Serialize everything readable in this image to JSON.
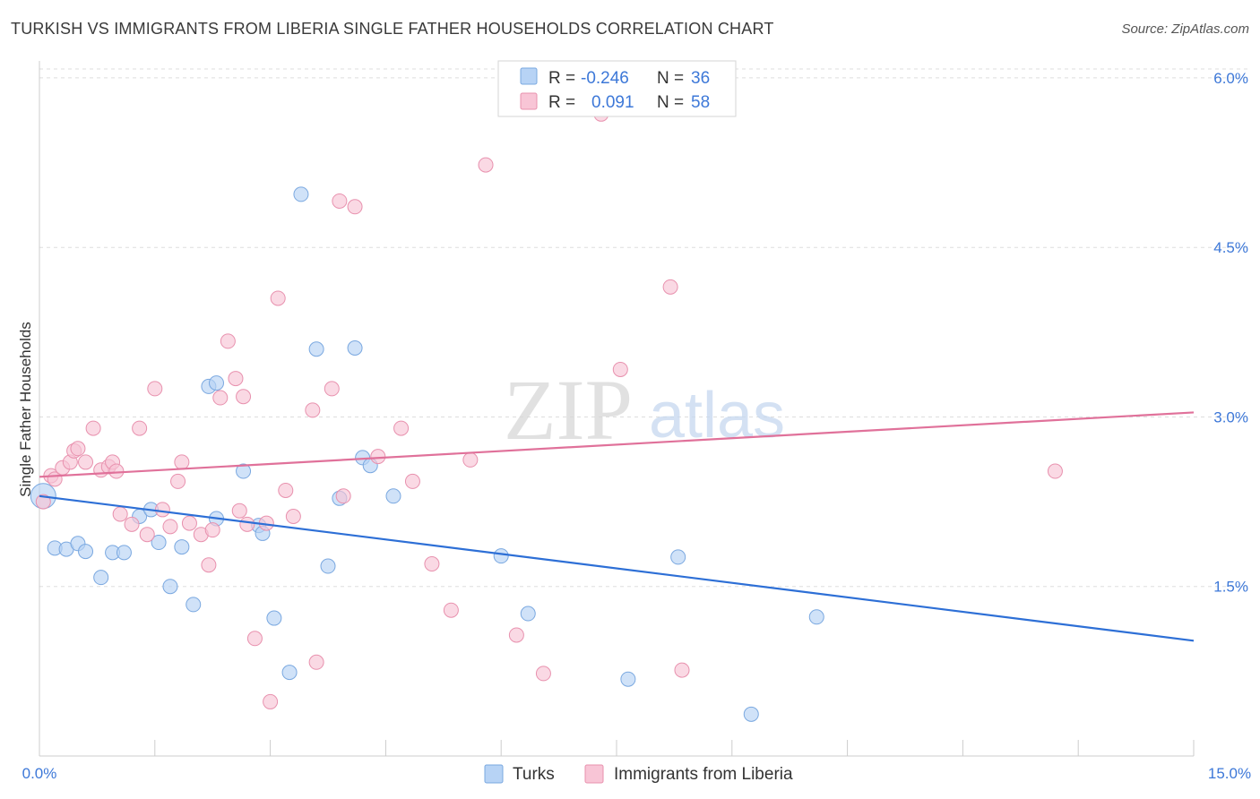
{
  "header": {
    "title": "TURKISH VS IMMIGRANTS FROM LIBERIA SINGLE FATHER HOUSEHOLDS CORRELATION CHART",
    "source": "Source: ZipAtlas.com"
  },
  "watermark": {
    "zip": "ZIP",
    "atlas": "atlas"
  },
  "legend_stats": [
    {
      "r_label": "R =",
      "r_value": "-0.246",
      "n_label": "N =",
      "n_value": "36"
    },
    {
      "r_label": "R =",
      "r_value": "0.091",
      "n_label": "N =",
      "n_value": "58"
    }
  ],
  "colors": {
    "turks_fill": "#b7d3f5",
    "turks_stroke": "#7aa8e0",
    "turks_line": "#2d6fd6",
    "liberia_fill": "#f8c5d6",
    "liberia_stroke": "#e891ae",
    "liberia_line": "#e0719a",
    "value_text": "#3d78d8",
    "grid": "#dddddd"
  },
  "chart_data": {
    "type": "scatter",
    "title": "TURKISH VS IMMIGRANTS FROM LIBERIA SINGLE FATHER HOUSEHOLDS CORRELATION CHART",
    "xlabel": "",
    "ylabel": "Single Father Households",
    "xlim": [
      0,
      15
    ],
    "ylim": [
      0,
      6.15
    ],
    "x_tick_labels": [
      "0.0%",
      "15.0%"
    ],
    "y_ticks": [
      1.5,
      3.0,
      4.5,
      6.0
    ],
    "y_tick_labels": [
      "1.5%",
      "3.0%",
      "4.5%",
      "6.0%"
    ],
    "grid": "horizontal dashed",
    "legend_position": "bottom-center",
    "series": [
      {
        "name": "Turks",
        "trend": [
          [
            0,
            2.3
          ],
          [
            15,
            1.02
          ]
        ],
        "points": [
          [
            0.05,
            2.3
          ],
          [
            0.2,
            1.84
          ],
          [
            0.35,
            1.83
          ],
          [
            0.5,
            1.88
          ],
          [
            0.6,
            1.81
          ],
          [
            0.8,
            1.58
          ],
          [
            0.95,
            1.8
          ],
          [
            1.1,
            1.8
          ],
          [
            1.3,
            2.12
          ],
          [
            1.45,
            2.18
          ],
          [
            1.55,
            1.89
          ],
          [
            1.7,
            1.5
          ],
          [
            1.85,
            1.85
          ],
          [
            2.0,
            1.34
          ],
          [
            2.2,
            3.27
          ],
          [
            2.3,
            3.3
          ],
          [
            2.3,
            2.1
          ],
          [
            2.65,
            2.52
          ],
          [
            2.85,
            2.04
          ],
          [
            2.9,
            1.97
          ],
          [
            3.05,
            1.22
          ],
          [
            3.25,
            0.74
          ],
          [
            3.4,
            4.97
          ],
          [
            3.6,
            3.6
          ],
          [
            3.75,
            1.68
          ],
          [
            3.9,
            2.28
          ],
          [
            4.1,
            3.61
          ],
          [
            4.2,
            2.64
          ],
          [
            4.3,
            2.57
          ],
          [
            4.6,
            2.3
          ],
          [
            6.0,
            1.77
          ],
          [
            6.35,
            1.26
          ],
          [
            7.65,
            0.68
          ],
          [
            8.3,
            1.76
          ],
          [
            9.25,
            0.37
          ],
          [
            10.1,
            1.23
          ]
        ]
      },
      {
        "name": "Immigrants from Liberia",
        "trend": [
          [
            0,
            2.47
          ],
          [
            15,
            3.04
          ]
        ],
        "points": [
          [
            0.05,
            2.25
          ],
          [
            0.15,
            2.48
          ],
          [
            0.2,
            2.45
          ],
          [
            0.3,
            2.55
          ],
          [
            0.4,
            2.6
          ],
          [
            0.45,
            2.7
          ],
          [
            0.5,
            2.72
          ],
          [
            0.6,
            2.6
          ],
          [
            0.7,
            2.9
          ],
          [
            0.8,
            2.53
          ],
          [
            0.9,
            2.56
          ],
          [
            0.95,
            2.6
          ],
          [
            1.0,
            2.52
          ],
          [
            1.05,
            2.14
          ],
          [
            1.2,
            2.05
          ],
          [
            1.3,
            2.9
          ],
          [
            1.4,
            1.96
          ],
          [
            1.5,
            3.25
          ],
          [
            1.6,
            2.18
          ],
          [
            1.7,
            2.03
          ],
          [
            1.8,
            2.43
          ],
          [
            1.85,
            2.6
          ],
          [
            1.95,
            2.06
          ],
          [
            2.1,
            1.96
          ],
          [
            2.2,
            1.69
          ],
          [
            2.25,
            2.0
          ],
          [
            2.35,
            3.17
          ],
          [
            2.45,
            3.67
          ],
          [
            2.55,
            3.34
          ],
          [
            2.6,
            2.17
          ],
          [
            2.65,
            3.18
          ],
          [
            2.7,
            2.05
          ],
          [
            2.8,
            1.04
          ],
          [
            2.95,
            2.06
          ],
          [
            3.0,
            0.48
          ],
          [
            3.1,
            4.05
          ],
          [
            3.2,
            2.35
          ],
          [
            3.3,
            2.12
          ],
          [
            3.55,
            3.06
          ],
          [
            3.6,
            0.83
          ],
          [
            3.8,
            3.25
          ],
          [
            3.9,
            4.91
          ],
          [
            3.95,
            2.3
          ],
          [
            4.1,
            4.86
          ],
          [
            4.4,
            2.65
          ],
          [
            4.7,
            2.9
          ],
          [
            4.85,
            2.43
          ],
          [
            5.1,
            1.7
          ],
          [
            5.35,
            1.29
          ],
          [
            5.6,
            2.62
          ],
          [
            5.8,
            5.23
          ],
          [
            6.2,
            1.07
          ],
          [
            6.55,
            0.73
          ],
          [
            7.3,
            5.68
          ],
          [
            7.55,
            3.42
          ],
          [
            8.2,
            4.15
          ],
          [
            8.35,
            0.76
          ],
          [
            13.2,
            2.52
          ]
        ]
      }
    ]
  }
}
